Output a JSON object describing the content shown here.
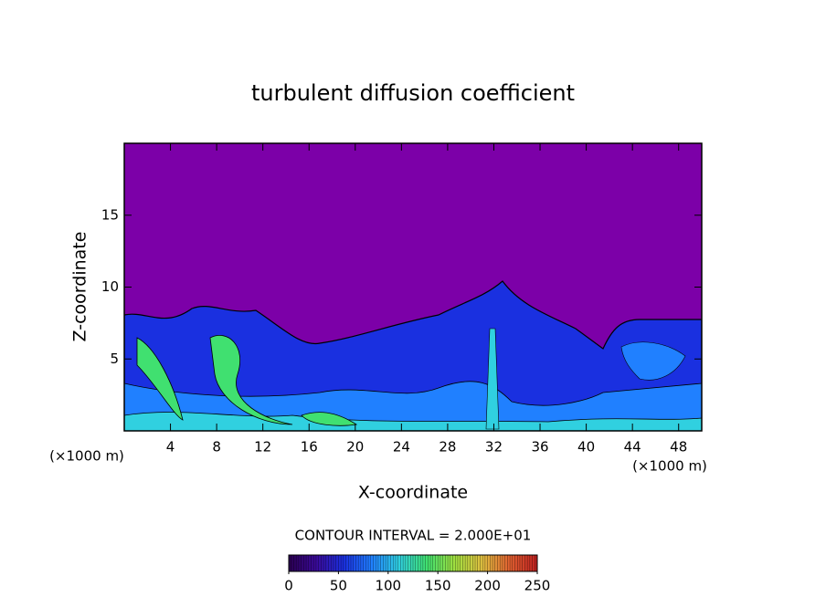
{
  "chart_data": {
    "type": "contour",
    "title": "turbulent diffusion coefficient",
    "x_label": "X-coordinate",
    "y_label": "Z-coordinate",
    "x_unit": "(×1000 m)",
    "y_unit": "(×1000 m)",
    "xlim": [
      0,
      50
    ],
    "xticks": [
      4,
      8,
      12,
      16,
      20,
      24,
      28,
      32,
      36,
      40,
      44,
      48
    ],
    "ylim": [
      0,
      20
    ],
    "yticks": [
      5,
      10,
      15
    ],
    "contour_interval_label": "CONTOUR INTERVAL = 2.000E+01",
    "colorbar_lim": [
      0,
      250
    ],
    "colorbar_ticks": [
      0,
      50,
      100,
      150,
      200,
      250
    ],
    "colormap": [
      "#2a0050",
      "#3a0a9a",
      "#1a30e0",
      "#2080ff",
      "#30d0e0",
      "#40e070",
      "#a0e040",
      "#e0c040",
      "#e06030",
      "#c02020"
    ],
    "background_color": "#7c00a8"
  }
}
